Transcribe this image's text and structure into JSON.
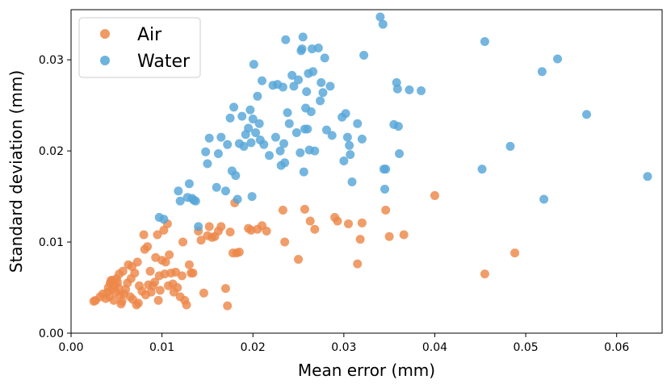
{
  "chart_data": {
    "type": "scatter",
    "title": "",
    "xlabel": "Mean error (mm)",
    "ylabel": "Standard deviation (mm)",
    "xlim": [
      0.0,
      0.065
    ],
    "ylim": [
      0.0,
      0.0355
    ],
    "xticks": [
      0.0,
      0.01,
      0.02,
      0.03,
      0.04,
      0.05,
      0.06
    ],
    "xtick_labels": [
      "0.00",
      "0.01",
      "0.02",
      "0.03",
      "0.04",
      "0.05",
      "0.06"
    ],
    "yticks": [
      0.0,
      0.01,
      0.02,
      0.03
    ],
    "ytick_labels": [
      "0.00",
      "0.01",
      "0.02",
      "0.03"
    ],
    "grid": false,
    "legend_position": "top-left",
    "series": [
      {
        "name": "Air",
        "color": "#ed8849",
        "points": [
          [
            0.0025,
            0.0035
          ],
          [
            0.0027,
            0.0036
          ],
          [
            0.0032,
            0.004
          ],
          [
            0.0035,
            0.0043
          ],
          [
            0.0038,
            0.0038
          ],
          [
            0.004,
            0.0045
          ],
          [
            0.0041,
            0.005
          ],
          [
            0.0042,
            0.004
          ],
          [
            0.0043,
            0.0055
          ],
          [
            0.0044,
            0.0058
          ],
          [
            0.0045,
            0.0048
          ],
          [
            0.0046,
            0.0058
          ],
          [
            0.0047,
            0.0036
          ],
          [
            0.0048,
            0.0052
          ],
          [
            0.0049,
            0.0045
          ],
          [
            0.005,
            0.006
          ],
          [
            0.0051,
            0.0056
          ],
          [
            0.0052,
            0.005
          ],
          [
            0.0053,
            0.0065
          ],
          [
            0.0054,
            0.0042
          ],
          [
            0.0055,
            0.0032
          ],
          [
            0.0056,
            0.0035
          ],
          [
            0.0057,
            0.0068
          ],
          [
            0.0058,
            0.0043
          ],
          [
            0.006,
            0.0048
          ],
          [
            0.0062,
            0.0055
          ],
          [
            0.0063,
            0.0075
          ],
          [
            0.0065,
            0.004
          ],
          [
            0.0066,
            0.006
          ],
          [
            0.0067,
            0.0073
          ],
          [
            0.0068,
            0.0037
          ],
          [
            0.007,
            0.0066
          ],
          [
            0.0072,
            0.0031
          ],
          [
            0.0073,
            0.0078
          ],
          [
            0.0074,
            0.0033
          ],
          [
            0.0075,
            0.0052
          ],
          [
            0.0078,
            0.0046
          ],
          [
            0.008,
            0.0108
          ],
          [
            0.0081,
            0.0092
          ],
          [
            0.0082,
            0.0042
          ],
          [
            0.0084,
            0.0095
          ],
          [
            0.0085,
            0.0053
          ],
          [
            0.0087,
            0.0068
          ],
          [
            0.0088,
            0.0045
          ],
          [
            0.009,
            0.0052
          ],
          [
            0.0092,
            0.0056
          ],
          [
            0.0093,
            0.0083
          ],
          [
            0.0095,
            0.0108
          ],
          [
            0.0096,
            0.0036
          ],
          [
            0.0097,
            0.0063
          ],
          [
            0.0098,
            0.0047
          ],
          [
            0.01,
            0.008
          ],
          [
            0.0102,
            0.0113
          ],
          [
            0.0103,
            0.0065
          ],
          [
            0.0104,
            0.0078
          ],
          [
            0.0106,
            0.012
          ],
          [
            0.0107,
            0.0052
          ],
          [
            0.0108,
            0.0086
          ],
          [
            0.011,
            0.0066
          ],
          [
            0.0112,
            0.0054
          ],
          [
            0.0113,
            0.0045
          ],
          [
            0.0115,
            0.0067
          ],
          [
            0.0117,
            0.005
          ],
          [
            0.012,
            0.004
          ],
          [
            0.0122,
            0.0063
          ],
          [
            0.0123,
            0.01
          ],
          [
            0.0125,
            0.0036
          ],
          [
            0.0127,
            0.0031
          ],
          [
            0.013,
            0.0075
          ],
          [
            0.0132,
            0.0066
          ],
          [
            0.0134,
            0.0066
          ],
          [
            0.014,
            0.0112
          ],
          [
            0.0143,
            0.0102
          ],
          [
            0.0146,
            0.0044
          ],
          [
            0.015,
            0.0107
          ],
          [
            0.0152,
            0.0117
          ],
          [
            0.0155,
            0.0105
          ],
          [
            0.0158,
            0.0106
          ],
          [
            0.0162,
            0.0112
          ],
          [
            0.0165,
            0.0117
          ],
          [
            0.017,
            0.0049
          ],
          [
            0.0172,
            0.003
          ],
          [
            0.0175,
            0.0111
          ],
          [
            0.0178,
            0.0088
          ],
          [
            0.018,
            0.0143
          ],
          [
            0.0182,
            0.0088
          ],
          [
            0.0185,
            0.0089
          ],
          [
            0.0195,
            0.0115
          ],
          [
            0.0198,
            0.0113
          ],
          [
            0.0205,
            0.0114
          ],
          [
            0.021,
            0.0118
          ],
          [
            0.0215,
            0.0112
          ],
          [
            0.0233,
            0.0135
          ],
          [
            0.0235,
            0.01
          ],
          [
            0.025,
            0.0081
          ],
          [
            0.0257,
            0.0136
          ],
          [
            0.0263,
            0.0123
          ],
          [
            0.0268,
            0.0114
          ],
          [
            0.029,
            0.0127
          ],
          [
            0.0293,
            0.0123
          ],
          [
            0.0305,
            0.012
          ],
          [
            0.0315,
            0.0076
          ],
          [
            0.0318,
            0.0103
          ],
          [
            0.032,
            0.0121
          ],
          [
            0.0346,
            0.0135
          ],
          [
            0.035,
            0.0106
          ],
          [
            0.0366,
            0.0108
          ],
          [
            0.04,
            0.0151
          ],
          [
            0.0455,
            0.0065
          ],
          [
            0.0488,
            0.0088
          ]
        ]
      },
      {
        "name": "Water",
        "color": "#55a6d8",
        "points": [
          [
            0.0097,
            0.0127
          ],
          [
            0.0102,
            0.0125
          ],
          [
            0.0118,
            0.0156
          ],
          [
            0.012,
            0.0145
          ],
          [
            0.0128,
            0.0149
          ],
          [
            0.013,
            0.0164
          ],
          [
            0.0133,
            0.0148
          ],
          [
            0.0135,
            0.0146
          ],
          [
            0.0137,
            0.0145
          ],
          [
            0.014,
            0.0117
          ],
          [
            0.0148,
            0.0199
          ],
          [
            0.015,
            0.0186
          ],
          [
            0.0152,
            0.0214
          ],
          [
            0.016,
            0.016
          ],
          [
            0.0162,
            0.0197
          ],
          [
            0.0165,
            0.0215
          ],
          [
            0.017,
            0.0156
          ],
          [
            0.0172,
            0.0207
          ],
          [
            0.0175,
            0.0236
          ],
          [
            0.0177,
            0.0178
          ],
          [
            0.0179,
            0.0248
          ],
          [
            0.0181,
            0.0173
          ],
          [
            0.0183,
            0.0147
          ],
          [
            0.0185,
            0.0208
          ],
          [
            0.0188,
            0.0238
          ],
          [
            0.019,
            0.0205
          ],
          [
            0.0192,
            0.0218
          ],
          [
            0.0195,
            0.0225
          ],
          [
            0.0197,
            0.0245
          ],
          [
            0.0198,
            0.0209
          ],
          [
            0.0199,
            0.015
          ],
          [
            0.02,
            0.0235
          ],
          [
            0.0201,
            0.0295
          ],
          [
            0.0203,
            0.022
          ],
          [
            0.0205,
            0.026
          ],
          [
            0.0207,
            0.023
          ],
          [
            0.0208,
            0.0212
          ],
          [
            0.021,
            0.0277
          ],
          [
            0.0212,
            0.0207
          ],
          [
            0.0218,
            0.0195
          ],
          [
            0.0222,
            0.0272
          ],
          [
            0.0225,
            0.0215
          ],
          [
            0.0227,
            0.0273
          ],
          [
            0.023,
            0.02
          ],
          [
            0.0231,
            0.0184
          ],
          [
            0.0233,
            0.027
          ],
          [
            0.0234,
            0.0208
          ],
          [
            0.0235,
            0.0187
          ],
          [
            0.0236,
            0.0322
          ],
          [
            0.0238,
            0.0242
          ],
          [
            0.024,
            0.023
          ],
          [
            0.0243,
            0.0283
          ],
          [
            0.0245,
            0.0271
          ],
          [
            0.0248,
            0.022
          ],
          [
            0.025,
            0.0278
          ],
          [
            0.0252,
            0.0198
          ],
          [
            0.0253,
            0.031
          ],
          [
            0.0254,
            0.0312
          ],
          [
            0.0255,
            0.0325
          ],
          [
            0.0256,
            0.0177
          ],
          [
            0.0257,
            0.0224
          ],
          [
            0.0258,
            0.0247
          ],
          [
            0.0259,
            0.0265
          ],
          [
            0.026,
            0.0224
          ],
          [
            0.0261,
            0.0285
          ],
          [
            0.0262,
            0.0201
          ],
          [
            0.0264,
            0.0243
          ],
          [
            0.0265,
            0.0312
          ],
          [
            0.0266,
            0.0287
          ],
          [
            0.0268,
            0.02
          ],
          [
            0.0272,
            0.0313
          ],
          [
            0.0274,
            0.0255
          ],
          [
            0.0275,
            0.0275
          ],
          [
            0.0277,
            0.0264
          ],
          [
            0.0279,
            0.0302
          ],
          [
            0.0281,
            0.0223
          ],
          [
            0.0285,
            0.0271
          ],
          [
            0.0287,
            0.0217
          ],
          [
            0.0298,
            0.0237
          ],
          [
            0.03,
            0.0189
          ],
          [
            0.0302,
            0.0241
          ],
          [
            0.0304,
            0.0215
          ],
          [
            0.0306,
            0.0206
          ],
          [
            0.0307,
            0.0196
          ],
          [
            0.0309,
            0.0166
          ],
          [
            0.0315,
            0.023
          ],
          [
            0.032,
            0.0213
          ],
          [
            0.0322,
            0.0305
          ],
          [
            0.034,
            0.0347
          ],
          [
            0.0343,
            0.0339
          ],
          [
            0.0344,
            0.018
          ],
          [
            0.0345,
            0.0158
          ],
          [
            0.0346,
            0.018
          ],
          [
            0.0355,
            0.0229
          ],
          [
            0.0358,
            0.0275
          ],
          [
            0.0359,
            0.0268
          ],
          [
            0.036,
            0.0227
          ],
          [
            0.0361,
            0.0197
          ],
          [
            0.0372,
            0.0267
          ],
          [
            0.0385,
            0.0266
          ],
          [
            0.0452,
            0.018
          ],
          [
            0.0455,
            0.032
          ],
          [
            0.0483,
            0.0205
          ],
          [
            0.0518,
            0.0287
          ],
          [
            0.052,
            0.0147
          ],
          [
            0.0535,
            0.0301
          ],
          [
            0.0567,
            0.024
          ],
          [
            0.0634,
            0.0172
          ]
        ]
      }
    ]
  }
}
